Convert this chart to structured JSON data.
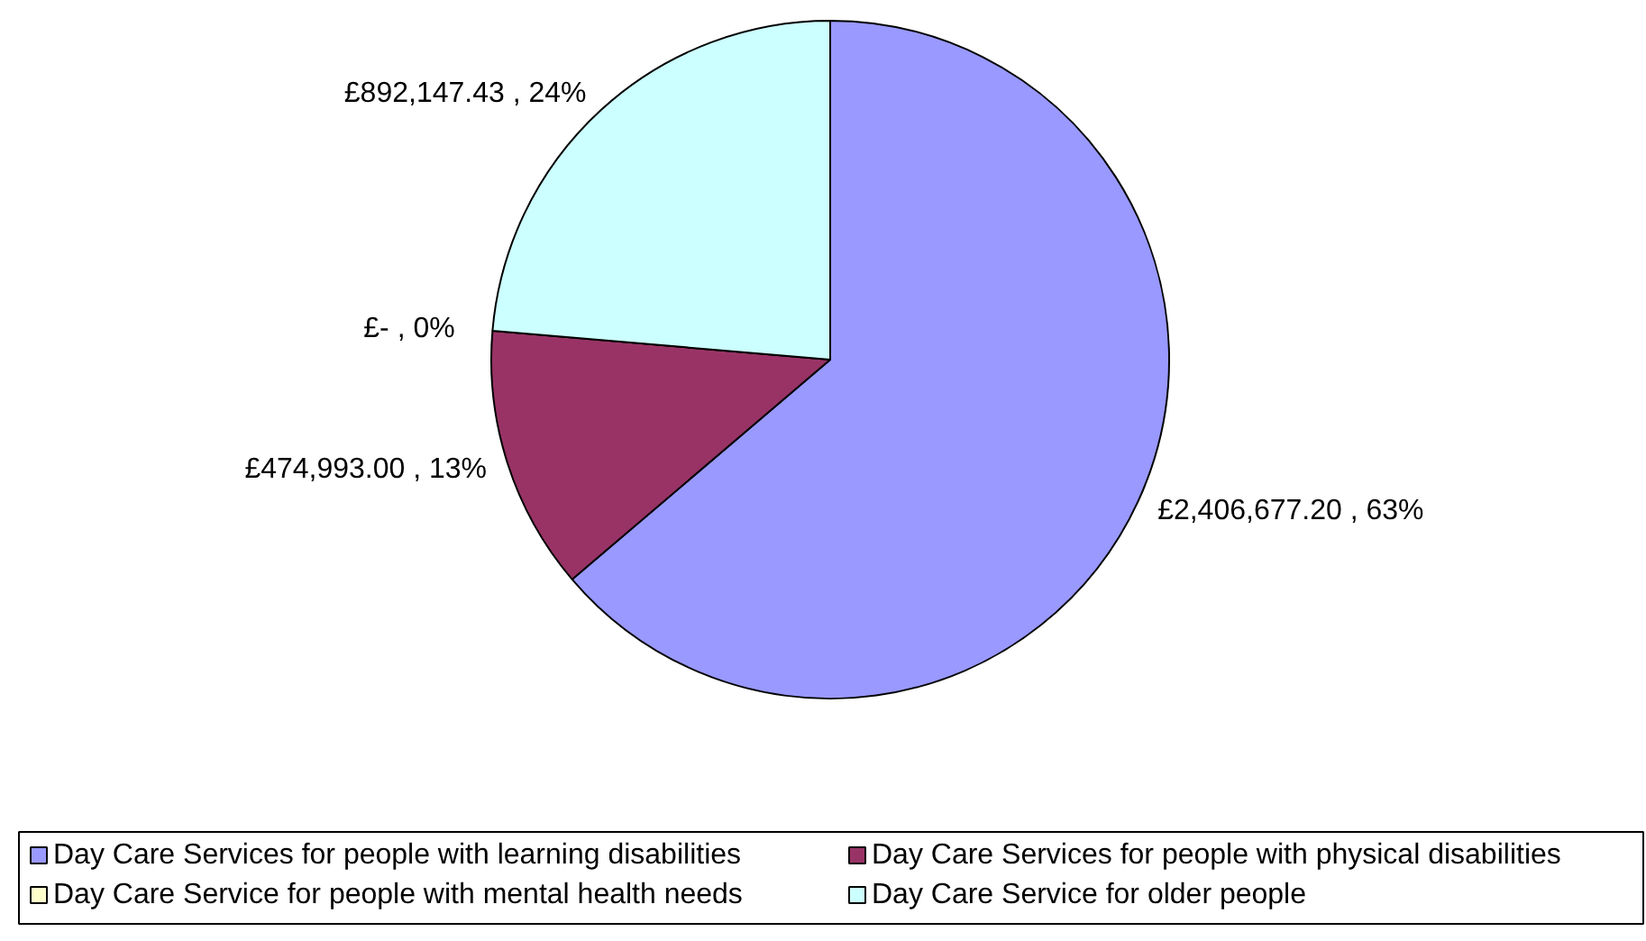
{
  "chart_data": {
    "type": "pie",
    "categories": [
      "Day Care Services for people with learning disabilities",
      "Day Care Services for people with physical disabilities",
      "Day Care Service for people with mental health needs",
      "Day Care Service for older people"
    ],
    "values": [
      2406677.2,
      474993.0,
      0,
      892147.43
    ],
    "colors": [
      "#9999ff",
      "#993366",
      "#ffffcc",
      "#ccffff"
    ],
    "value_labels": [
      "£2,406,677.20 , 63%",
      "£474,993.00 , 13%",
      "£-   , 0%",
      "£892,147.43 , 24%"
    ],
    "legend": "bottom"
  }
}
